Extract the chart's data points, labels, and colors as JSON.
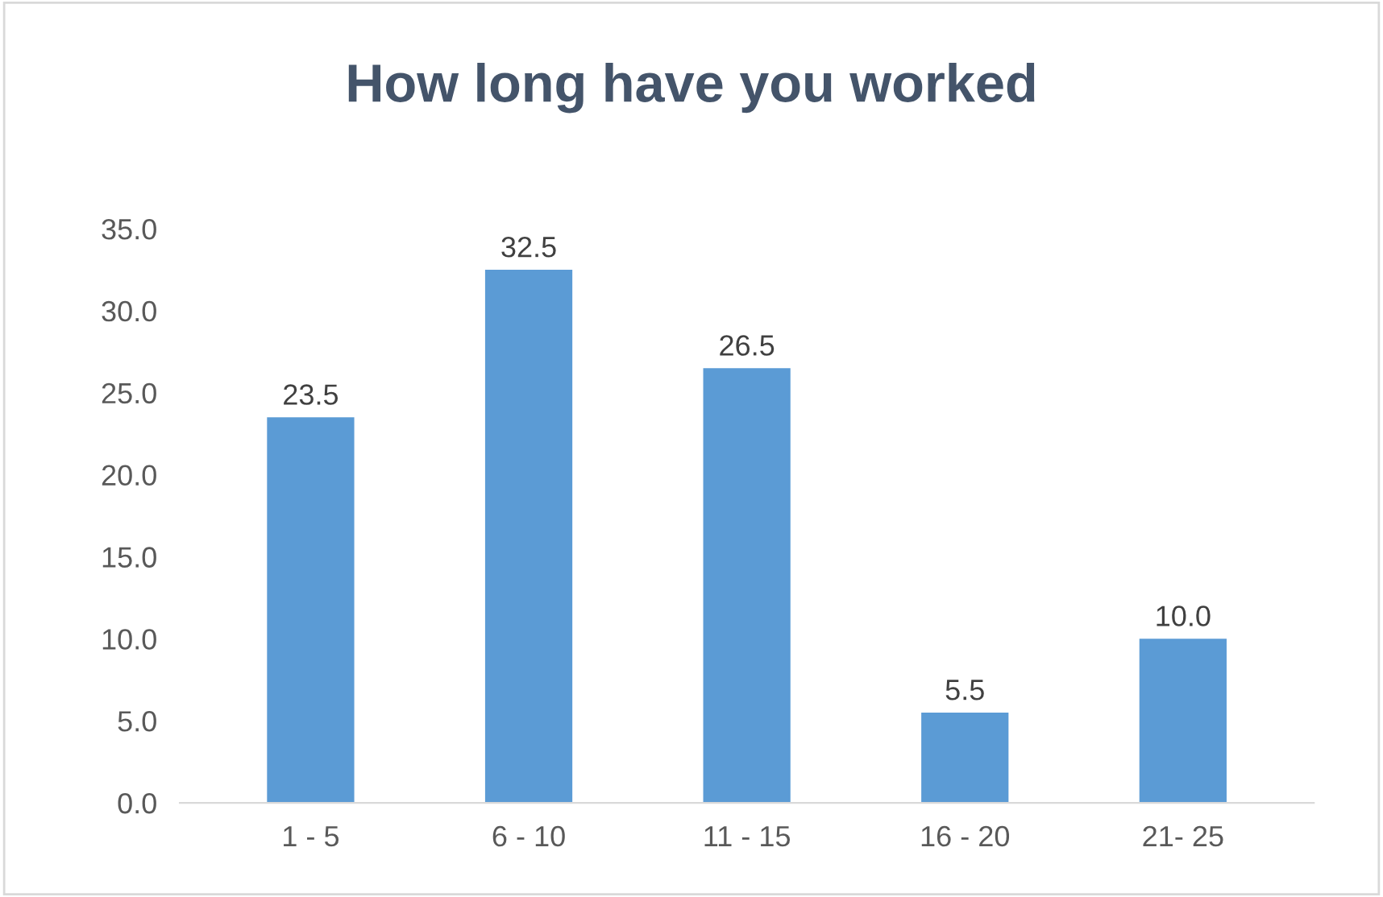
{
  "chart_data": {
    "type": "bar",
    "title": "How long have you worked",
    "categories": [
      "1 - 5",
      "6 - 10",
      "11 - 15",
      "16 - 20",
      "21- 25"
    ],
    "values": [
      23.5,
      32.5,
      26.5,
      5.5,
      10.0
    ],
    "value_labels": [
      "23.5",
      "32.5",
      "26.5",
      "5.5",
      "10.0"
    ],
    "color": "#5b9bd5",
    "ylim": [
      0,
      35
    ],
    "yticks": [
      {
        "value": 0,
        "label": "0.0"
      },
      {
        "value": 5,
        "label": "5.0"
      },
      {
        "value": 10,
        "label": "10.0"
      },
      {
        "value": 15,
        "label": "15.0"
      },
      {
        "value": 20,
        "label": "20.0"
      },
      {
        "value": 25,
        "label": "25.0"
      },
      {
        "value": 30,
        "label": "30.0"
      },
      {
        "value": 35,
        "label": "35.0"
      }
    ],
    "grid": false
  }
}
